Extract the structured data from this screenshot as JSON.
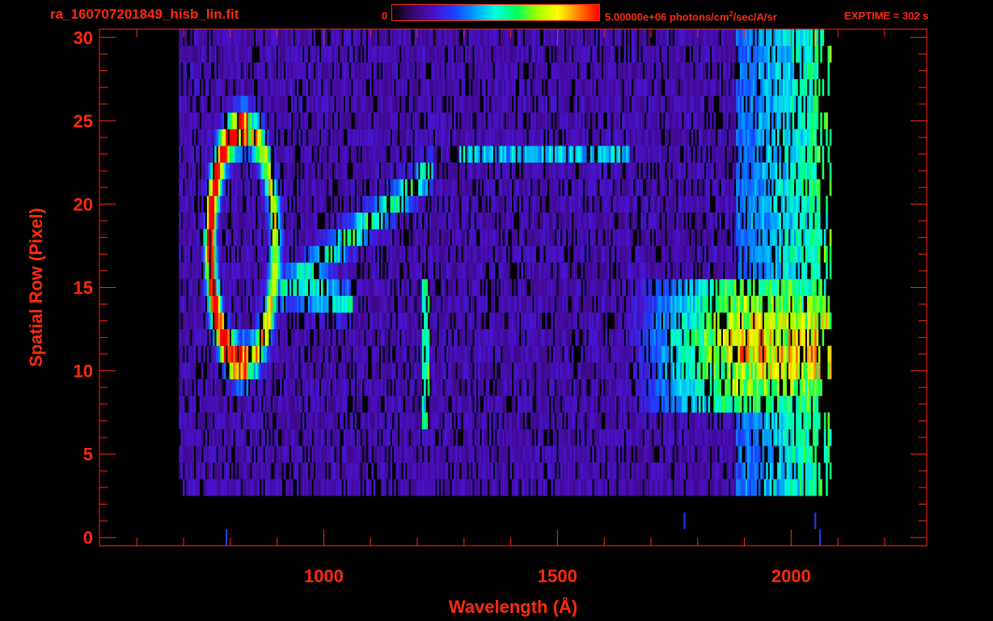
{
  "header": {
    "file_title": "ra_160707201849_hisb_lin.fit",
    "colorbar_min": "0",
    "colorbar_max_prefix": "5.00000e+06 photons/cm",
    "colorbar_max_sup": "2",
    "colorbar_max_suffix": "/sec/A/sr",
    "exptime": "EXPTIME = 302 s"
  },
  "colors": {
    "axis": "#ff2a10",
    "background": "#000000",
    "colormap": [
      "#000000",
      "#3a0870",
      "#4a10c8",
      "#1a40ff",
      "#00a0ff",
      "#00ffe0",
      "#00ff60",
      "#a0ff00",
      "#ffff00",
      "#ff8000",
      "#ff0000"
    ]
  },
  "chart_data": {
    "type": "heatmap",
    "title": "ra_160707201849_hisb_lin.fit",
    "xlabel": "Wavelength (Å)",
    "ylabel": "Spatial Row (Pixel)",
    "xlim": [
      520,
      2290
    ],
    "ylim": [
      -0.5,
      30.5
    ],
    "xticks": [
      1000,
      1500,
      2000
    ],
    "xtick_labels": [
      "1000",
      "1500",
      "2000"
    ],
    "yticks": [
      0,
      5,
      10,
      15,
      20,
      25,
      30
    ],
    "ytick_labels": [
      "0",
      "5",
      "10",
      "15",
      "20",
      "25",
      "30"
    ],
    "colorbar": {
      "min": 0,
      "max": 5000000,
      "unit": "photons/cm2/sec/A/sr",
      "colormap": "rainbow"
    },
    "data_extent_x": [
      690,
      2085
    ],
    "rows_with_signal": [
      3,
      30
    ],
    "features": [
      {
        "name": "arc",
        "x_range": [
          770,
          910
        ],
        "rows": [
          10,
          24
        ],
        "peak": 0.95
      },
      {
        "name": "diagonal",
        "x_from": 920,
        "x_to": 1230,
        "row_from": 15,
        "row_to": 22,
        "level": 0.4
      },
      {
        "name": "line",
        "x": 1215,
        "rows": [
          7,
          15
        ],
        "level": 0.42
      },
      {
        "name": "band",
        "x_range": [
          1710,
          2060
        ],
        "rows": [
          8,
          15
        ],
        "peak": 0.65
      },
      {
        "name": "faint_band",
        "x_range": [
          1290,
          1650
        ],
        "row": 23,
        "level": 0.25
      }
    ]
  }
}
